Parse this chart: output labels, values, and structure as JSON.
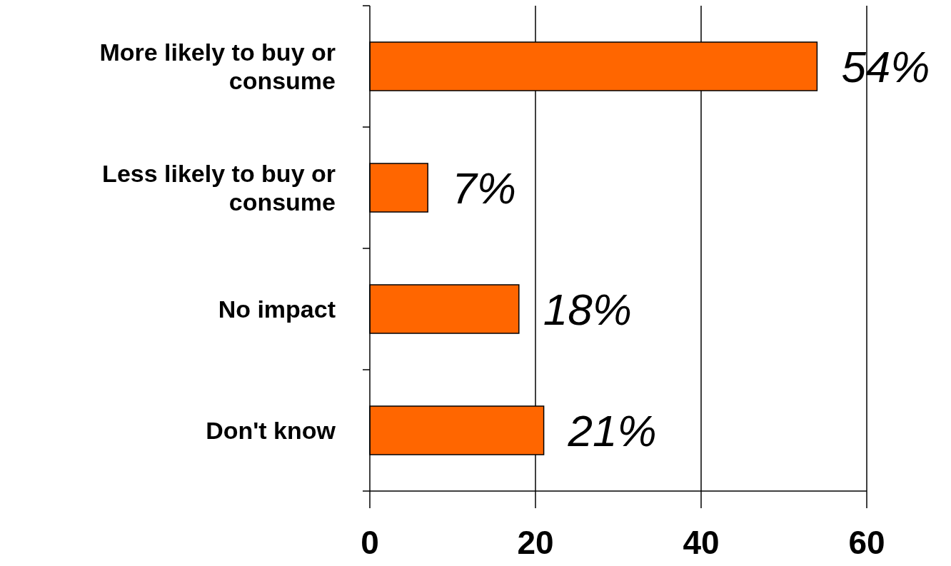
{
  "chart_data": {
    "type": "bar",
    "orientation": "horizontal",
    "categories": [
      "More likely to buy or consume",
      "Less likely to buy or consume",
      "No impact",
      "Don't know"
    ],
    "values": [
      54,
      7,
      18,
      21
    ],
    "value_labels": [
      "54%",
      "7%",
      "18%",
      "21%"
    ],
    "color": "#ff6600",
    "xlim": [
      0,
      60
    ],
    "xticks": [
      0,
      20,
      40,
      60
    ],
    "grid": "x"
  }
}
